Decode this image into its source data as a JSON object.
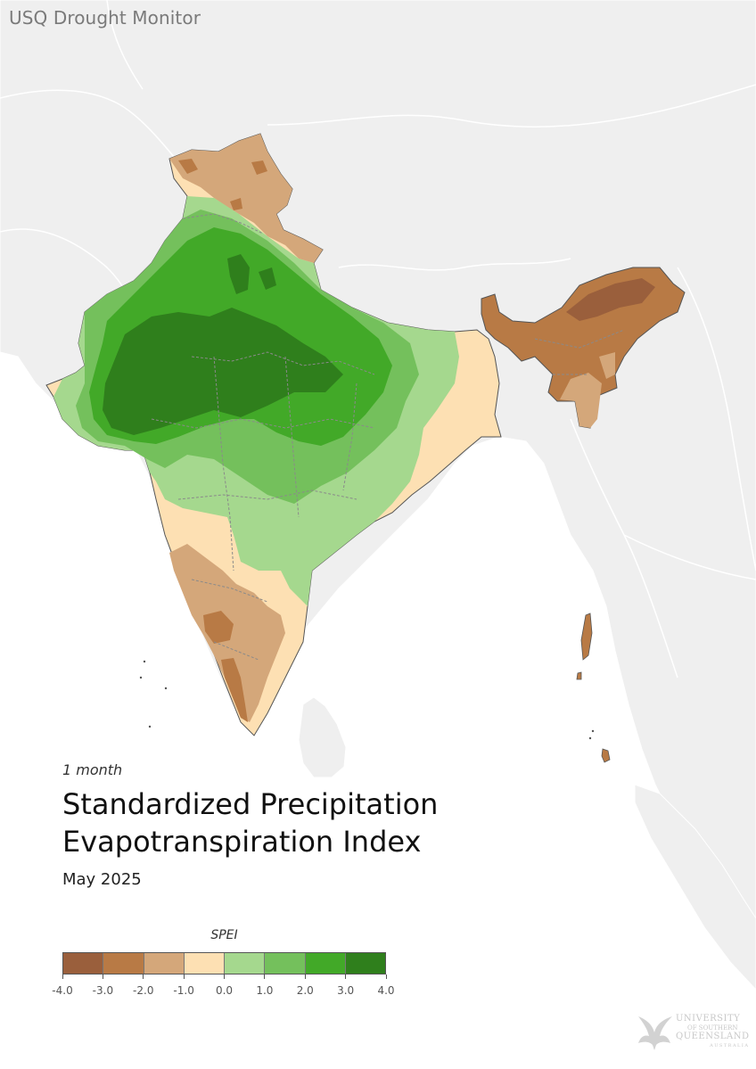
{
  "app": {
    "title": "USQ Drought Monitor"
  },
  "map": {
    "period": "1 month",
    "title_line1": "Standardized Precipitation",
    "title_line2": "Evapotranspiration Index",
    "date": "May 2025",
    "region_shown": "India"
  },
  "legend": {
    "title": "SPEI",
    "classes": [
      {
        "range": [
          -4.0,
          -3.0
        ],
        "color": "#9a5f3c"
      },
      {
        "range": [
          -3.0,
          -2.0
        ],
        "color": "#b87a45"
      },
      {
        "range": [
          -2.0,
          -1.0
        ],
        "color": "#d4a77a"
      },
      {
        "range": [
          -1.0,
          0.0
        ],
        "color": "#fde0b3"
      },
      {
        "range": [
          0.0,
          1.0
        ],
        "color": "#a5d88e"
      },
      {
        "range": [
          1.0,
          2.0
        ],
        "color": "#74c05c"
      },
      {
        "range": [
          2.0,
          3.0
        ],
        "color": "#42a928"
      },
      {
        "range": [
          3.0,
          4.0
        ],
        "color": "#2f7f1c"
      }
    ],
    "tick_labels": [
      "-4.0",
      "-3.0",
      "-2.0",
      "-1.0",
      "0.0",
      "1.0",
      "2.0",
      "3.0",
      "4.0"
    ]
  },
  "colors": {
    "ocean": "#ffffff",
    "land_context": "#efefef",
    "border": "#888888"
  },
  "logo": {
    "icon": "phoenix-icon",
    "line1": "UNIVERSITY",
    "line2": "OF SOUTHERN",
    "line3": "QUEENSLAND",
    "line4": "AUSTRALIA"
  }
}
